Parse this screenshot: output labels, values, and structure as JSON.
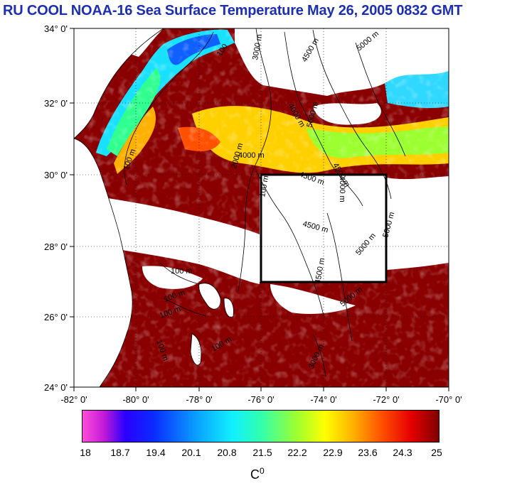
{
  "title": "RU COOL  NOAA-16 Sea Surface Temperature May 26, 2005 0832 GMT",
  "map": {
    "lat_labels": [
      "34° 0'",
      "32° 0'",
      "30° 0'",
      "28° 0'",
      "26° 0'",
      "24° 0'"
    ],
    "lon_labels": [
      "-82° 0'",
      "-80° 0'",
      "-78° 0'",
      "-76° 0'",
      "-74° 0'",
      "-72° 0'",
      "-70° 0'"
    ],
    "contour_labels": [
      "100",
      "3000 m",
      "4500 m",
      "5000 m",
      "4000 m",
      "5000 m",
      "4000 m",
      "4500 m",
      "4500 m",
      "4000 m",
      "100 m",
      "2000 m",
      "100 m",
      "4500 m",
      "5000 m",
      "5000 m",
      "100 m",
      "100 m",
      "100 m",
      "4500 m",
      "5000 m",
      "100 m",
      "3000 m",
      "100 m"
    ],
    "colors": {
      "land": "#ffffff",
      "cloud": "#ffffff",
      "warm": "#8a0000",
      "box": "#000000"
    }
  },
  "colorbar": {
    "ticks": [
      "18",
      "18.7",
      "19.4",
      "20.1",
      "20.8",
      "21.5",
      "22.2",
      "22.9",
      "23.6",
      "24.3",
      "25"
    ],
    "unit": "C",
    "unit_sup": "0"
  }
}
